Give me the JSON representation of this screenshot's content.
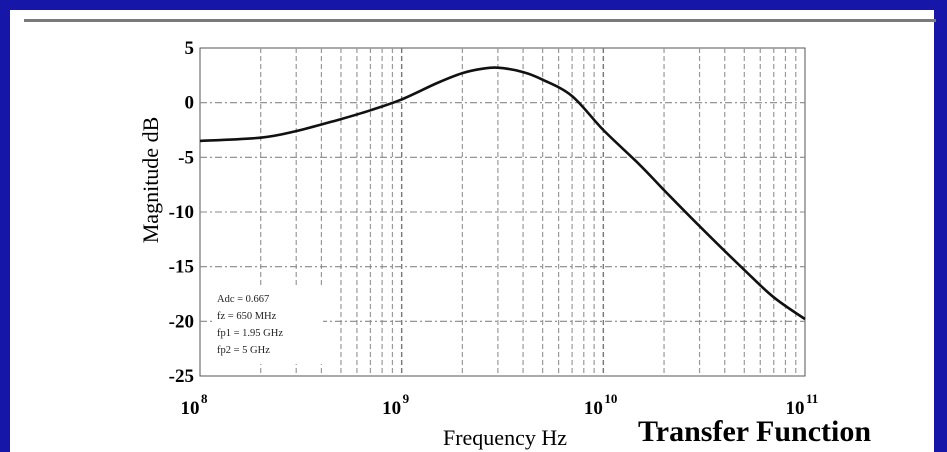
{
  "caption": "Transfer Function",
  "chart_data": {
    "type": "line",
    "title": "Transfer Function",
    "xlabel": "Frequency Hz",
    "ylabel": "Magnitude dB",
    "x_scale": "log",
    "xlim": [
      100000000,
      100000000000
    ],
    "ylim": [
      -25,
      5
    ],
    "grid": true,
    "y_ticks": [
      "5",
      "0",
      "-5",
      "-10",
      "-15",
      "-20",
      "-25"
    ],
    "x_ticks": [
      {
        "base": "10",
        "exp": "8"
      },
      {
        "base": "10",
        "exp": "9"
      },
      {
        "base": "10",
        "exp": "10"
      },
      {
        "base": "10",
        "exp": "11"
      }
    ],
    "annotations": [
      "Adc = 0.667",
      "fz = 650 MHz",
      "fp1 = 1.95 GHz",
      "fp2 = 5 GHz"
    ],
    "series": [
      {
        "x": [
          100000000,
          200000000,
          300000000,
          500000000,
          700000000,
          1000000000,
          1500000000,
          2000000000,
          2500000000,
          3000000000,
          4000000000,
          5000000000,
          7000000000,
          10000000000,
          15000000000,
          20000000000,
          30000000000,
          50000000000,
          70000000000,
          100000000000
        ],
        "y": [
          -3.5,
          -3.2,
          -2.6,
          -1.5,
          -0.7,
          0.3,
          1.8,
          2.7,
          3.1,
          3.2,
          2.8,
          2.1,
          0.6,
          -2.5,
          -5.6,
          -8.0,
          -11.3,
          -15.3,
          -17.8,
          -19.8
        ]
      }
    ]
  }
}
